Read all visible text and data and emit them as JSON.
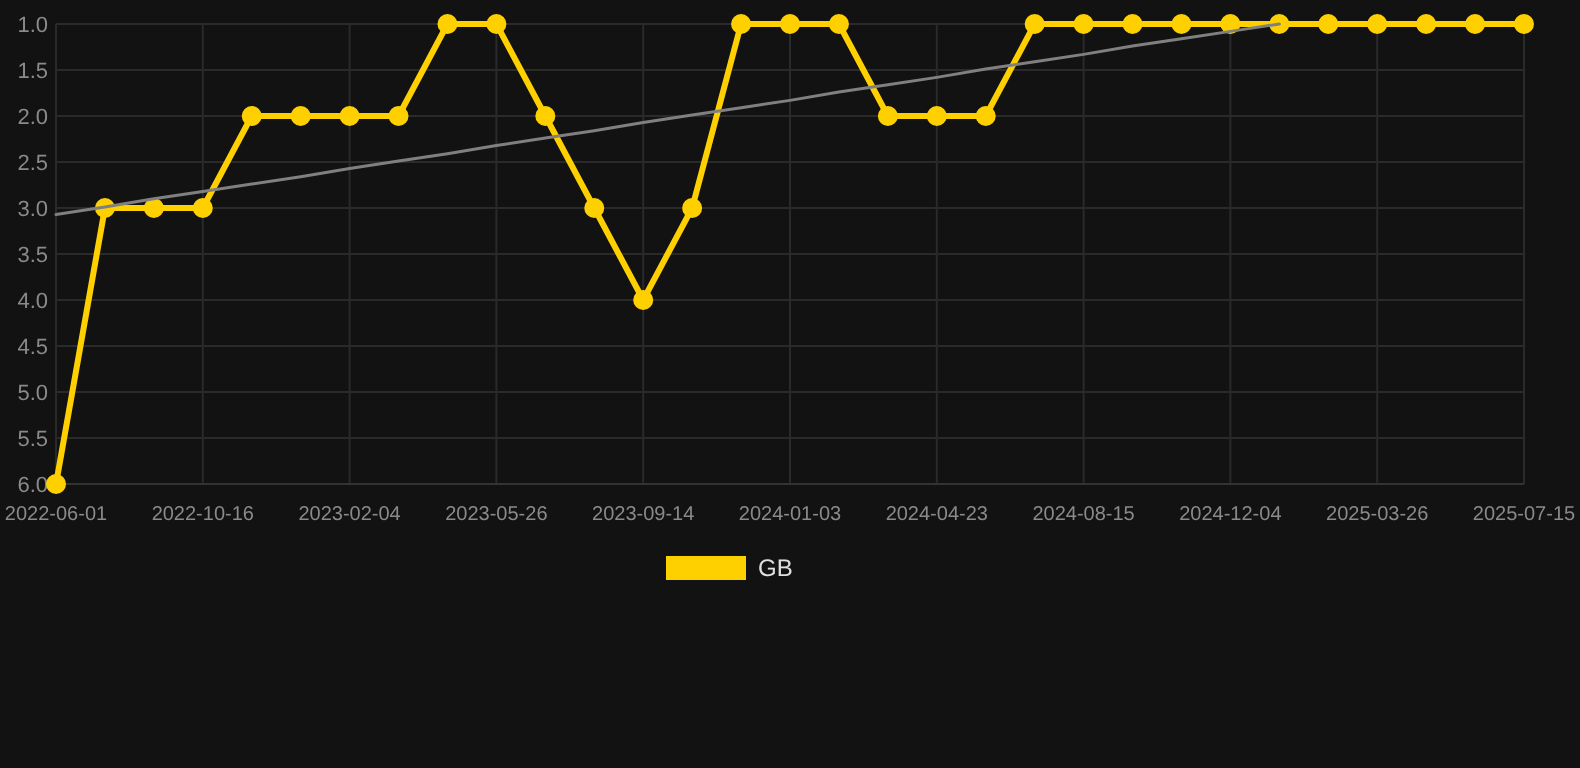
{
  "chart_data": {
    "type": "line",
    "categories": [
      "2022-06-01",
      null,
      null,
      "2022-10-16",
      null,
      null,
      "2023-02-04",
      null,
      null,
      "2023-05-26",
      null,
      null,
      "2023-09-14",
      null,
      null,
      "2024-01-03",
      null,
      null,
      "2024-04-23",
      null,
      null,
      "2024-08-15",
      null,
      null,
      "2024-12-04",
      null,
      null,
      "2025-03-26",
      null,
      null,
      "2025-07-15"
    ],
    "series": [
      {
        "name": "GB",
        "color": "#ffd000",
        "marker": "circle",
        "values": [
          6,
          3,
          3,
          3,
          2,
          2,
          2,
          2,
          1,
          1,
          2,
          3,
          4,
          3,
          1,
          1,
          1,
          2,
          2,
          2,
          1,
          1,
          1,
          1,
          1,
          1,
          1,
          1,
          1,
          1,
          1
        ]
      },
      {
        "type": "line",
        "color": "#808080",
        "marker": "none",
        "values": [
          3.07,
          2.99,
          2.9,
          2.82,
          2.74,
          2.66,
          2.57,
          2.49,
          2.41,
          2.32,
          2.24,
          2.16,
          2.07,
          1.99,
          1.91,
          1.83,
          1.74,
          1.66,
          1.58,
          1.49,
          1.41,
          1.33,
          1.24,
          1.16,
          1.08,
          1.0,
          null,
          null,
          null,
          null,
          null
        ]
      }
    ],
    "ylim": [
      6,
      1
    ],
    "yticks": [
      {
        "value": 1,
        "label": "1.0"
      },
      {
        "value": 1.5,
        "label": "1.5"
      },
      {
        "value": 2,
        "label": "2.0"
      },
      {
        "value": 2.5,
        "label": "2.5"
      },
      {
        "value": 3,
        "label": "3.0"
      },
      {
        "value": 3.5,
        "label": "3.5"
      },
      {
        "value": 4,
        "label": "4.0"
      },
      {
        "value": 4.5,
        "label": "4.5"
      },
      {
        "value": 5,
        "label": "5.0"
      },
      {
        "value": 5.5,
        "label": "5.5"
      },
      {
        "value": 6,
        "label": "6.0"
      }
    ],
    "grid": true,
    "legend": "bottom"
  }
}
